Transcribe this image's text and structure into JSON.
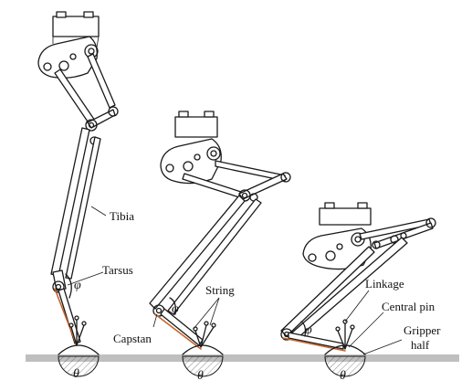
{
  "labels": {
    "tibia": "Tibia",
    "tarsus": "Tarsus",
    "string": "String",
    "capstan": "Capstan",
    "linkage": "Linkage",
    "central_pin": "Central pin",
    "gripper_half_line1": "Gripper",
    "gripper_half_line2": "half"
  },
  "symbols": {
    "phi": "φ",
    "theta": "θ"
  },
  "colors": {
    "ink": "#1a1a1a",
    "string": "#c8642a",
    "ground": "#bfbfbf"
  }
}
